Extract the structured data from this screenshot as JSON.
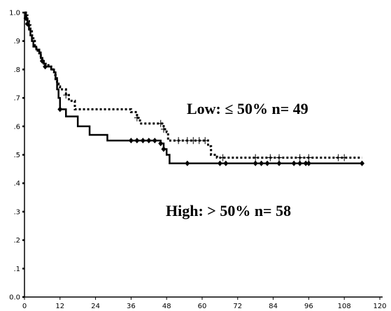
{
  "chart_data": {
    "type": "line",
    "title": "",
    "xlabel": "",
    "ylabel": "",
    "xlim": [
      0,
      120
    ],
    "ylim": [
      0.0,
      1.0
    ],
    "x_ticks": [
      0,
      12,
      24,
      36,
      48,
      60,
      72,
      84,
      96,
      108,
      120
    ],
    "x_tick_labels": [
      "0",
      "12",
      "24",
      "36",
      "48",
      "60",
      "72",
      "84",
      "96",
      "108",
      "120"
    ],
    "y_ticks": [
      0.0,
      0.1,
      0.2,
      0.3,
      0.4,
      0.5,
      0.6,
      0.7,
      0.8,
      0.9,
      1.0
    ],
    "y_tick_labels": [
      "0.0",
      ".1",
      ".2",
      ".3",
      ".4",
      ".5",
      ".6",
      ".7",
      ".8",
      ".9",
      "1.0"
    ],
    "grid": false,
    "legend": "none",
    "annotations": [
      {
        "text": "Low: ≤ 50% n= 49",
        "series": "low"
      },
      {
        "text": "High: > 50% n= 58",
        "series": "high"
      }
    ],
    "series": [
      {
        "id": "low",
        "style": "dotted",
        "color": "#000000",
        "marker": "plus",
        "steps": [
          [
            0,
            1.0
          ],
          [
            0.5,
            0.99
          ],
          [
            1,
            0.97
          ],
          [
            1.5,
            0.955
          ],
          [
            2,
            0.94
          ],
          [
            2.5,
            0.92
          ],
          [
            3,
            0.9
          ],
          [
            3.5,
            0.885
          ],
          [
            4,
            0.87
          ],
          [
            4.5,
            0.86
          ],
          [
            5,
            0.85
          ],
          [
            5.5,
            0.84
          ],
          [
            6,
            0.83
          ],
          [
            6.5,
            0.82
          ],
          [
            7.5,
            0.815
          ],
          [
            8.5,
            0.81
          ],
          [
            9.5,
            0.8
          ],
          [
            10,
            0.78
          ],
          [
            10.5,
            0.76
          ],
          [
            11,
            0.75
          ],
          [
            11.5,
            0.74
          ],
          [
            12,
            0.73
          ],
          [
            14,
            0.71
          ],
          [
            15,
            0.69
          ],
          [
            17,
            0.66
          ],
          [
            36,
            0.65
          ],
          [
            38,
            0.63
          ],
          [
            39,
            0.61
          ],
          [
            47,
            0.59
          ],
          [
            48,
            0.58
          ],
          [
            48.5,
            0.55
          ],
          [
            62,
            0.53
          ],
          [
            63,
            0.5
          ],
          [
            65,
            0.49
          ],
          [
            114,
            0.49
          ]
        ],
        "censor_x": [
          14,
          38,
          46,
          47,
          52,
          55,
          57,
          59,
          61,
          67,
          78,
          83,
          86,
          93,
          96,
          106,
          108
        ]
      },
      {
        "id": "high",
        "style": "solid",
        "color": "#000000",
        "marker": "diamond",
        "steps": [
          [
            0,
            1.0
          ],
          [
            0.5,
            0.98
          ],
          [
            1,
            0.96
          ],
          [
            1.5,
            0.94
          ],
          [
            2,
            0.92
          ],
          [
            2.5,
            0.9
          ],
          [
            3,
            0.88
          ],
          [
            4,
            0.87
          ],
          [
            5,
            0.86
          ],
          [
            5.5,
            0.84
          ],
          [
            6,
            0.83
          ],
          [
            6.5,
            0.82
          ],
          [
            7,
            0.81
          ],
          [
            9,
            0.8
          ],
          [
            10,
            0.79
          ],
          [
            10.5,
            0.77
          ],
          [
            11,
            0.73
          ],
          [
            11.5,
            0.7
          ],
          [
            12,
            0.66
          ],
          [
            14,
            0.635
          ],
          [
            18,
            0.6
          ],
          [
            22,
            0.57
          ],
          [
            28,
            0.55
          ],
          [
            46,
            0.54
          ],
          [
            47,
            0.52
          ],
          [
            48,
            0.5
          ],
          [
            49,
            0.47
          ],
          [
            114,
            0.47
          ]
        ],
        "censor_x": [
          0.5,
          1,
          6,
          7,
          12,
          36,
          38,
          40,
          42,
          44,
          46,
          47,
          55,
          66,
          68,
          78,
          80,
          82,
          86,
          91,
          93,
          95,
          96,
          114
        ]
      }
    ]
  }
}
